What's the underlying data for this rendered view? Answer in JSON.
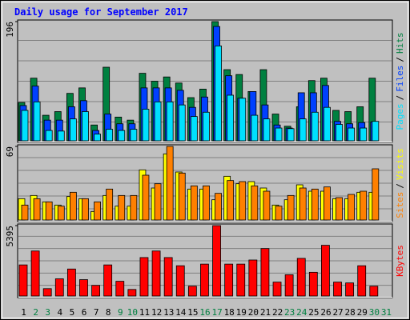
{
  "chart_data": [
    {
      "type": "bar",
      "title": "Daily usage for September 2017",
      "legend_separator": "/",
      "ylim": [
        0,
        196
      ],
      "yticks": [
        196
      ],
      "series": [
        {
          "name": "Hits",
          "color": "#008040",
          "values": [
            63,
            103,
            42,
            48,
            78,
            87,
            26,
            121,
            39,
            34,
            111,
            98,
            105,
            95,
            71,
            85,
            196,
            117,
            109,
            81,
            117,
            44,
            24,
            56,
            99,
            103,
            50,
            48,
            56,
            103,
            null
          ]
        },
        {
          "name": "Files",
          "color": "#0040ff",
          "values": [
            58,
            90,
            34,
            34,
            56,
            66,
            17,
            44,
            28,
            28,
            87,
            87,
            87,
            83,
            55,
            72,
            188,
            107,
            70,
            81,
            59,
            26,
            21,
            79,
            79,
            91,
            32,
            28,
            30,
            31,
            null
          ]
        },
        {
          "name": "Pages",
          "color": "#00e0ff",
          "values": [
            50,
            64,
            17,
            16,
            36,
            48,
            11,
            19,
            17,
            19,
            52,
            64,
            64,
            59,
            40,
            47,
            156,
            75,
            70,
            42,
            36,
            21,
            20,
            36,
            47,
            55,
            27,
            21,
            21,
            32,
            null
          ]
        }
      ]
    },
    {
      "type": "bar",
      "legend_separator": "/",
      "ylim": [
        0,
        69
      ],
      "yticks": [
        69
      ],
      "series": [
        {
          "name": "Visits",
          "color": "#ffff00",
          "values": [
            20,
            23,
            17,
            14,
            22,
            20,
            8,
            23,
            13,
            13,
            47,
            30,
            62,
            45,
            29,
            29,
            19,
            41,
            34,
            36,
            30,
            14,
            19,
            33,
            27,
            27,
            20,
            20,
            26,
            26,
            null
          ]
        },
        {
          "name": "Sites",
          "color": "#ff8000",
          "values": [
            14,
            20,
            17,
            13,
            26,
            20,
            17,
            29,
            23,
            23,
            42,
            34,
            69,
            44,
            32,
            32,
            25,
            37,
            36,
            32,
            27,
            13,
            23,
            30,
            29,
            31,
            21,
            24,
            27,
            48,
            null
          ]
        }
      ]
    },
    {
      "type": "bar",
      "ylim": [
        0,
        5395
      ],
      "yticks": [
        5395
      ],
      "categories": [
        "1",
        "2",
        "3",
        "4",
        "5",
        "6",
        "7",
        "8",
        "9",
        "10",
        "11",
        "12",
        "13",
        "14",
        "15",
        "16",
        "17",
        "18",
        "19",
        "20",
        "21",
        "22",
        "23",
        "24",
        "25",
        "26",
        "27",
        "28",
        "29",
        "30",
        "31"
      ],
      "label_colors": [
        "#000000",
        "#008040",
        "#008040",
        "#000000",
        "#000000",
        "#000000",
        "#000000",
        "#000000",
        "#008040",
        "#008040",
        "#000000",
        "#000000",
        "#000000",
        "#000000",
        "#000000",
        "#008040",
        "#008040",
        "#000000",
        "#000000",
        "#000000",
        "#000000",
        "#000000",
        "#008040",
        "#008040",
        "#000000",
        "#000000",
        "#000000",
        "#000000",
        "#000000",
        "#008040",
        "#008040"
      ],
      "series": [
        {
          "name": "KBytes",
          "color": "#ff0000",
          "values": [
            2383,
            3449,
            564,
            1317,
            2069,
            1254,
            815,
            2383,
            1129,
            502,
            2947,
            3449,
            2947,
            2320,
            752,
            2445,
            5395,
            2445,
            2445,
            2759,
            3637,
            1066,
            1630,
            2884,
            1818,
            3887,
            1066,
            1003,
            2320,
            752,
            null
          ]
        }
      ]
    }
  ]
}
